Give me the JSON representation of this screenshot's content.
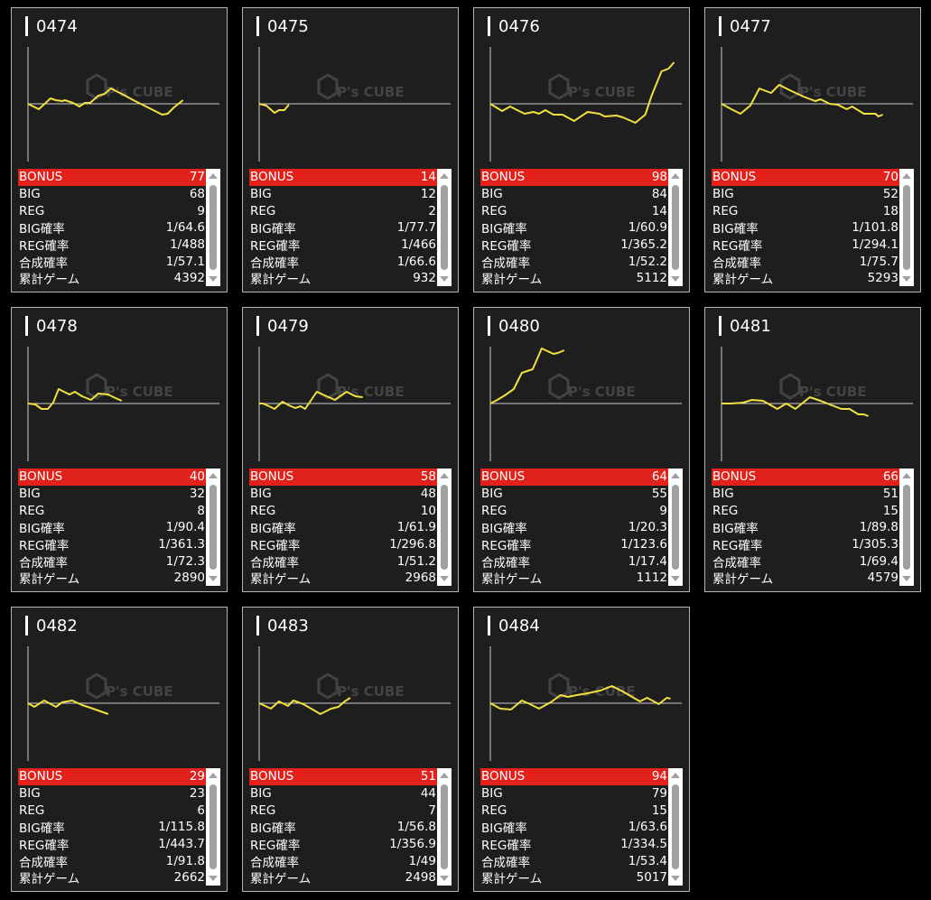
{
  "labels": {
    "bonus": "BONUS",
    "big": "BIG",
    "reg": "REG",
    "big_rate": "BIG確率",
    "reg_rate": "REG確率",
    "combined_rate": "合成確率",
    "total_games": "累計ゲーム"
  },
  "watermark": "P's CUBE",
  "colors": {
    "bonus_row": "#e0211c",
    "line": "#f0e040",
    "background": "#1e1e1e"
  },
  "chart_data": {
    "type": "line",
    "xlim": [
      0,
      8500
    ],
    "ylim": [
      -3200,
      3200
    ]
  },
  "cards": [
    {
      "id": "0474",
      "bonus": "77",
      "big": "68",
      "reg": "9",
      "big_rate": "1/64.6",
      "reg_rate": "1/488",
      "combined_rate": "1/57.1",
      "total_games": "4392",
      "x": [
        0,
        480,
        1000,
        1240,
        1520,
        1640,
        2000,
        2280,
        2520,
        2760,
        3120,
        3400,
        3680,
        3920,
        4320,
        4680,
        5080,
        5480,
        5960,
        6200,
        6480,
        6880
      ],
      "y": [
        0,
        -300,
        300,
        200,
        150,
        200,
        50,
        -150,
        50,
        50,
        450,
        550,
        850,
        700,
        450,
        200,
        -50,
        -300,
        -600,
        -550,
        -200,
        200
      ]
    },
    {
      "id": "0475",
      "bonus": "14",
      "big": "12",
      "reg": "2",
      "big_rate": "1/77.7",
      "reg_rate": "1/466",
      "combined_rate": "1/66.6",
      "total_games": "932",
      "x": [
        0,
        320,
        680,
        880,
        1120,
        1320
      ],
      "y": [
        0,
        -100,
        -500,
        -350,
        -350,
        -50
      ]
    },
    {
      "id": "0476",
      "bonus": "98",
      "big": "84",
      "reg": "14",
      "big_rate": "1/60.9",
      "reg_rate": "1/365.2",
      "combined_rate": "1/52.2",
      "total_games": "5112",
      "x": [
        0,
        520,
        880,
        1520,
        1920,
        2160,
        2440,
        2800,
        3200,
        3720,
        4320,
        4840,
        5080,
        5600,
        5880,
        6440,
        6880,
        7160,
        7600,
        7920,
        8160
      ],
      "y": [
        0,
        -400,
        -150,
        -550,
        -450,
        -550,
        -350,
        -600,
        -600,
        -950,
        -450,
        -550,
        -700,
        -650,
        -750,
        -1050,
        -600,
        450,
        1800,
        1950,
        2300
      ]
    },
    {
      "id": "0477",
      "bonus": "70",
      "big": "52",
      "reg": "18",
      "big_rate": "1/101.8",
      "reg_rate": "1/294.1",
      "combined_rate": "1/75.7",
      "total_games": "5293",
      "x": [
        0,
        440,
        840,
        1280,
        1680,
        2200,
        2560,
        3120,
        3640,
        4160,
        4400,
        4800,
        5160,
        5560,
        5800,
        6320,
        6840,
        6960,
        7160
      ],
      "y": [
        0,
        -300,
        -550,
        -100,
        850,
        600,
        1050,
        700,
        400,
        150,
        250,
        0,
        -50,
        -300,
        -150,
        -550,
        -550,
        -700,
        -600
      ]
    },
    {
      "id": "0478",
      "bonus": "40",
      "big": "32",
      "reg": "8",
      "big_rate": "1/90.4",
      "reg_rate": "1/361.3",
      "combined_rate": "1/72.3",
      "total_games": "2890",
      "x": [
        0,
        320,
        600,
        880,
        1120,
        1360,
        1840,
        2080,
        2400,
        2800,
        3120,
        3560,
        3800,
        4160
      ],
      "y": [
        0,
        -50,
        -300,
        -300,
        50,
        800,
        500,
        650,
        400,
        200,
        550,
        500,
        350,
        150
      ]
    },
    {
      "id": "0479",
      "bonus": "58",
      "big": "48",
      "reg": "10",
      "big_rate": "1/61.9",
      "reg_rate": "1/296.8",
      "combined_rate": "1/51.2",
      "total_games": "2968",
      "x": [
        0,
        160,
        440,
        680,
        1040,
        1320,
        1600,
        1840,
        2040,
        2560,
        3000,
        3360,
        3880,
        4280,
        4600
      ],
      "y": [
        0,
        0,
        -150,
        -300,
        100,
        -100,
        -250,
        -150,
        -300,
        650,
        400,
        200,
        650,
        400,
        350
      ]
    },
    {
      "id": "0480",
      "bonus": "64",
      "big": "55",
      "reg": "9",
      "big_rate": "1/20.3",
      "reg_rate": "1/123.6",
      "combined_rate": "1/17.4",
      "total_games": "1112",
      "x": [
        0,
        240,
        640,
        1040,
        1400,
        1880,
        2280,
        2800,
        3000,
        3280
      ],
      "y": [
        0,
        150,
        450,
        800,
        1700,
        1900,
        3050,
        2750,
        2800,
        2950
      ]
    },
    {
      "id": "0481",
      "bonus": "66",
      "big": "51",
      "reg": "15",
      "big_rate": "1/89.8",
      "reg_rate": "1/305.3",
      "combined_rate": "1/69.4",
      "total_games": "4579",
      "x": [
        0,
        440,
        960,
        1360,
        1840,
        2480,
        2880,
        3280,
        3920,
        4400,
        4800,
        5320,
        5680,
        6080,
        6320,
        6520
      ],
      "y": [
        0,
        0,
        50,
        200,
        150,
        -300,
        0,
        -300,
        350,
        150,
        -50,
        -300,
        -300,
        -600,
        -600,
        -700
      ]
    },
    {
      "id": "0482",
      "bonus": "29",
      "big": "23",
      "reg": "6",
      "big_rate": "1/115.8",
      "reg_rate": "1/443.7",
      "combined_rate": "1/91.8",
      "total_games": "2662",
      "x": [
        0,
        280,
        720,
        1240,
        1520,
        1960,
        2400,
        2880,
        3560
      ],
      "y": [
        0,
        -200,
        150,
        -200,
        50,
        150,
        -100,
        -300,
        -600
      ]
    },
    {
      "id": "0483",
      "bonus": "51",
      "big": "44",
      "reg": "7",
      "big_rate": "1/56.8",
      "reg_rate": "1/356.9",
      "combined_rate": "1/49",
      "total_games": "2498",
      "x": [
        0,
        520,
        880,
        1280,
        1520,
        1960,
        2720,
        3200,
        3520,
        3800,
        4040
      ],
      "y": [
        0,
        -300,
        100,
        -150,
        150,
        -50,
        -600,
        -300,
        -200,
        100,
        300
      ]
    },
    {
      "id": "0484",
      "bonus": "94",
      "big": "79",
      "reg": "15",
      "big_rate": "1/63.6",
      "reg_rate": "1/334.5",
      "combined_rate": "1/53.4",
      "total_games": "5017",
      "x": [
        0,
        440,
        920,
        1400,
        1760,
        2160,
        2680,
        3120,
        3440,
        3840,
        4320,
        4880,
        5400,
        5880,
        6640,
        6960,
        7480,
        7840,
        8000
      ],
      "y": [
        0,
        -300,
        -350,
        150,
        -50,
        -300,
        50,
        450,
        350,
        450,
        550,
        700,
        950,
        650,
        100,
        300,
        -50,
        300,
        250
      ]
    }
  ]
}
